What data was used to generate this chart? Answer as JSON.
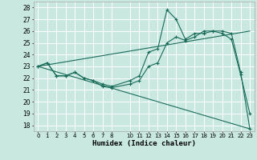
{
  "title": "",
  "xlabel": "Humidex (Indice chaleur)",
  "bg_color": "#c8e8e0",
  "grid_color": "#ffffff",
  "line_color": "#1a6b5a",
  "xlim": [
    -0.5,
    23.5
  ],
  "ylim": [
    17.5,
    28.5
  ],
  "xticks": [
    0,
    1,
    2,
    3,
    4,
    5,
    6,
    7,
    8,
    10,
    11,
    12,
    13,
    14,
    15,
    16,
    17,
    18,
    19,
    20,
    21,
    22,
    23
  ],
  "yticks": [
    18,
    19,
    20,
    21,
    22,
    23,
    24,
    25,
    26,
    27,
    28
  ],
  "series1_x": [
    0,
    1,
    2,
    3,
    4,
    5,
    6,
    7,
    8,
    10,
    11,
    12,
    13,
    14,
    15,
    16,
    17,
    18,
    19,
    20,
    21,
    22,
    23
  ],
  "series1_y": [
    23.0,
    23.3,
    22.2,
    22.2,
    22.5,
    22.0,
    21.8,
    21.5,
    21.3,
    21.8,
    22.2,
    24.2,
    24.5,
    27.8,
    27.0,
    25.3,
    25.8,
    25.8,
    26.0,
    25.8,
    25.3,
    22.3,
    19.0
  ],
  "series2_x": [
    0,
    1,
    2,
    3,
    4,
    5,
    6,
    7,
    8,
    10,
    11,
    12,
    13,
    14,
    15,
    16,
    17,
    18,
    19,
    20,
    21,
    22,
    23
  ],
  "series2_y": [
    23.0,
    23.3,
    22.2,
    22.2,
    22.5,
    22.0,
    21.8,
    21.3,
    21.2,
    21.5,
    21.8,
    23.0,
    23.3,
    25.0,
    25.5,
    25.2,
    25.5,
    26.0,
    26.0,
    26.0,
    25.8,
    22.5,
    17.7
  ],
  "series3_x": [
    0,
    23
  ],
  "series3_y": [
    23.0,
    17.7
  ],
  "series4_x": [
    0,
    23
  ],
  "series4_y": [
    23.0,
    26.0
  ]
}
